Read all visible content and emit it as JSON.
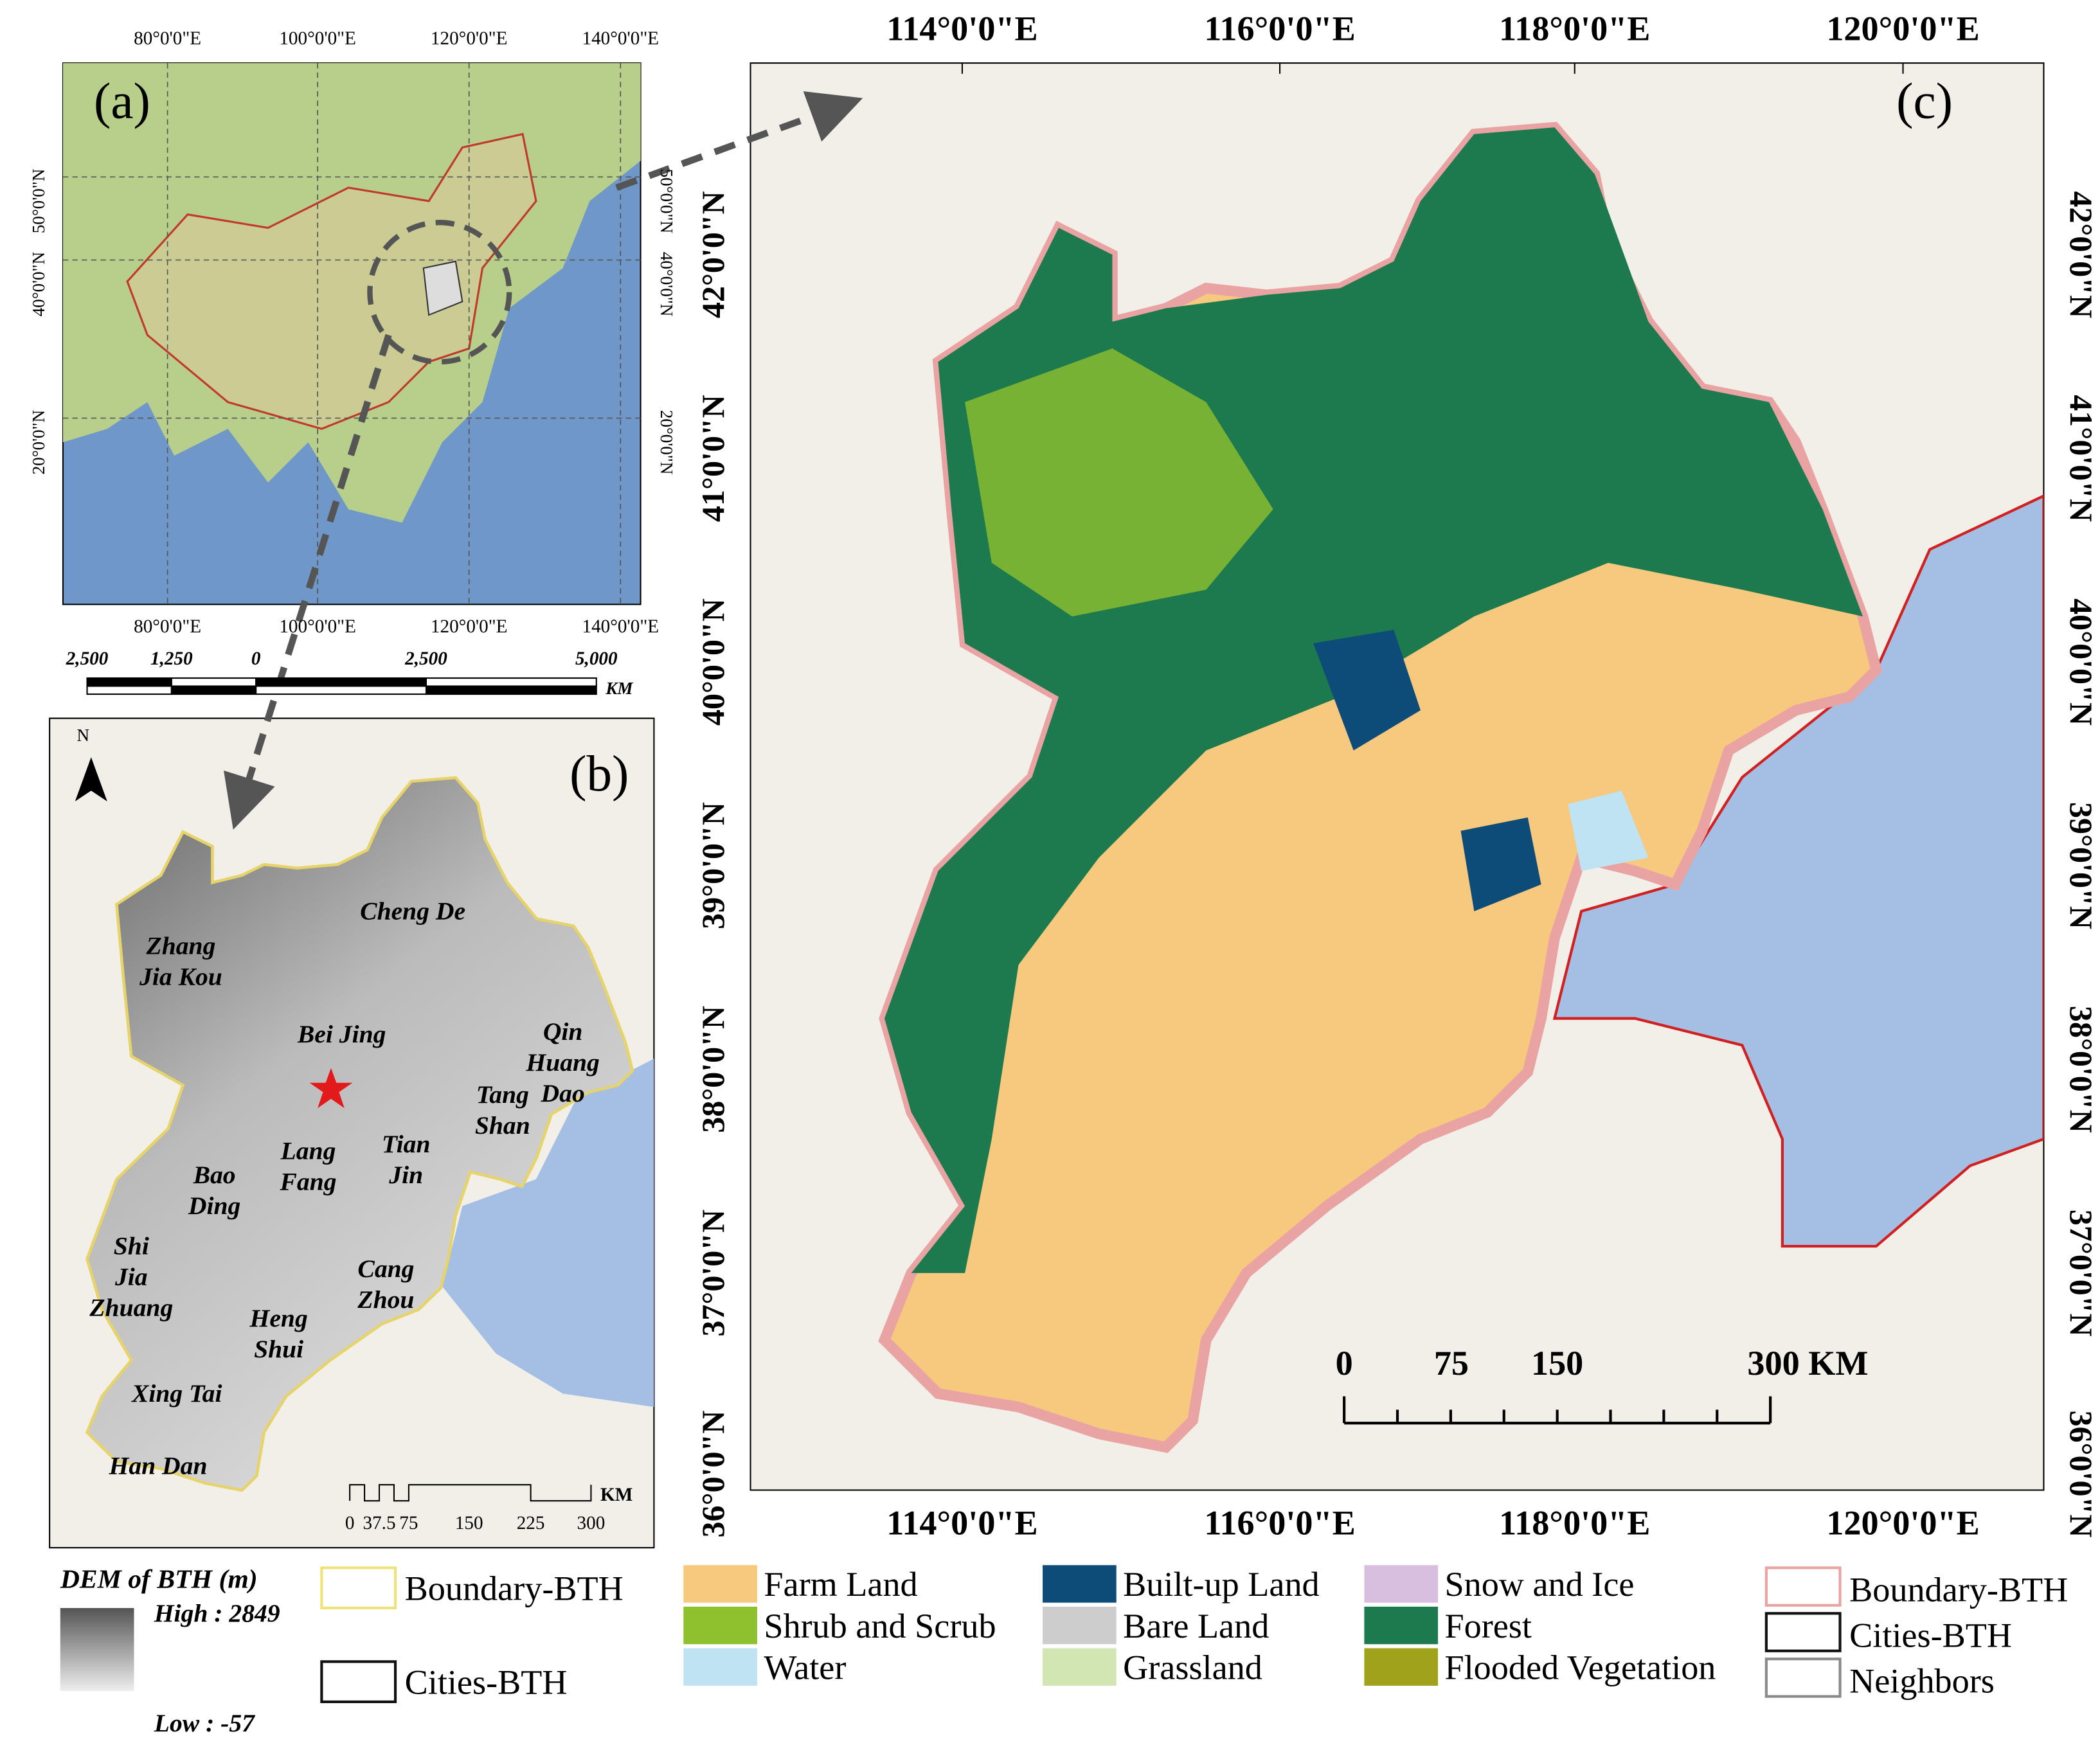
{
  "panel_a": {
    "label": "(a)",
    "lon_ticks": [
      "80°0'0\"E",
      "100°0'0\"E",
      "120°0'0\"E",
      "140°0'0\"E"
    ],
    "lat_ticks": [
      "50°0'0\"N",
      "40°0'0\"N",
      "20°0'0\"N"
    ],
    "scale_labels": [
      "2,500",
      "1,250",
      "0",
      "2,500",
      "5,000"
    ],
    "scale_unit": "KM"
  },
  "panel_b": {
    "label": "(b)",
    "north": "N",
    "cities": [
      {
        "lines": [
          "Zhang",
          "Jia Kou"
        ]
      },
      {
        "lines": [
          "Cheng De"
        ]
      },
      {
        "lines": [
          "Bei Jing"
        ]
      },
      {
        "lines": [
          "Qin",
          "Huang",
          "Dao"
        ]
      },
      {
        "lines": [
          "Tang",
          "Shan"
        ]
      },
      {
        "lines": [
          "Lang",
          "Fang"
        ]
      },
      {
        "lines": [
          "Tian",
          "Jin"
        ]
      },
      {
        "lines": [
          "Bao",
          "Ding"
        ]
      },
      {
        "lines": [
          "Shi",
          "Jia",
          "Zhuang"
        ]
      },
      {
        "lines": [
          "Cang",
          "Zhou"
        ]
      },
      {
        "lines": [
          "Heng",
          "Shui"
        ]
      },
      {
        "lines": [
          "Xing Tai"
        ]
      },
      {
        "lines": [
          "Han Dan"
        ]
      }
    ],
    "scale_labels": [
      "0",
      "37.5",
      "75",
      "150",
      "225",
      "300"
    ],
    "scale_unit": "KM"
  },
  "panel_c": {
    "label": "(c)",
    "lon_ticks": [
      "114°0'0\"E",
      "116°0'0\"E",
      "118°0'0\"E",
      "120°0'0\"E"
    ],
    "lat_ticks": [
      "42°0'0\"N",
      "41°0'0\"N",
      "40°0'0\"N",
      "39°0'0\"N",
      "38°0'0\"N",
      "37°0'0\"N",
      "36°0'0\"N"
    ],
    "scale_labels": [
      "0",
      "75",
      "150",
      "300 KM"
    ]
  },
  "legend": {
    "dem_title": "DEM of BTH (m)",
    "dem_high": "High : 2849",
    "dem_low": "Low : -57",
    "boundaries_b": [
      {
        "label": "Boundary-BTH",
        "color": "#efe27a"
      },
      {
        "label": "Cities-BTH",
        "color": "#111111"
      }
    ],
    "land_cover": [
      {
        "label": "Farm Land",
        "color": "#f6c97e"
      },
      {
        "label": "Shrub and Scrub",
        "color": "#8fc12e"
      },
      {
        "label": "Water",
        "color": "#bfe3f3"
      },
      {
        "label": "Built-up Land",
        "color": "#0d4c78"
      },
      {
        "label": "Bare Land",
        "color": "#cdcdcd"
      },
      {
        "label": "Grassland",
        "color": "#d2e6b4"
      },
      {
        "label": "Snow and Ice",
        "color": "#d8bfe0"
      },
      {
        "label": "Forest",
        "color": "#1d7a4e"
      },
      {
        "label": "Flooded Vegetation",
        "color": "#a1a21c"
      }
    ],
    "boundaries_c": [
      {
        "label": "Boundary-BTH",
        "color": "#eaa3a3"
      },
      {
        "label": "Cities-BTH",
        "color": "#111111"
      },
      {
        "label": "Neighbors",
        "color": "#8a8a8a"
      }
    ]
  }
}
